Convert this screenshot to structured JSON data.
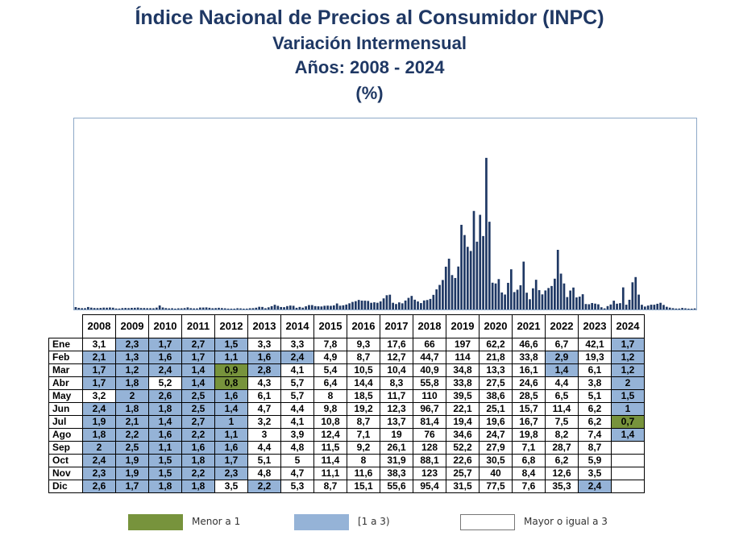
{
  "title": {
    "line1": "Índice Nacional de Precios al Consumidor (INPC)",
    "line2": "Variación Intermensual",
    "line3": "Años: 2008 - 2024",
    "line4": "(%)"
  },
  "colors": {
    "low": "#77933c",
    "mid": "#95b3d7",
    "high": "#ffffff",
    "bar": "#1f3864",
    "title": "#1f3864"
  },
  "chart_data": {
    "type": "bar",
    "title": "Índice Nacional de Precios al Consumidor (INPC)",
    "subtitle": "Variación Intermensual",
    "years": [
      "2008",
      "2009",
      "2010",
      "2011",
      "2012",
      "2013",
      "2014",
      "2015",
      "2016",
      "2017",
      "2018",
      "2019",
      "2020",
      "2021",
      "2022",
      "2023",
      "2024"
    ],
    "months": [
      "Ene",
      "Feb",
      "Mar",
      "Abr",
      "May",
      "Jun",
      "Jul",
      "Ago",
      "Sep",
      "Oct",
      "Nov",
      "Dic"
    ],
    "values": [
      [
        "3,1",
        "2,3",
        "1,7",
        "2,7",
        "1,5",
        "3,3",
        "3,3",
        "7,8",
        "9,3",
        "17,6",
        "66",
        "197",
        "62,2",
        "46,6",
        "6,7",
        "42,1",
        "1,7"
      ],
      [
        "2,1",
        "1,3",
        "1,6",
        "1,7",
        "1,1",
        "1,6",
        "2,4",
        "4,9",
        "8,7",
        "12,7",
        "44,7",
        "114",
        "21,8",
        "33,8",
        "2,9",
        "19,3",
        "1,2"
      ],
      [
        "1,7",
        "1,2",
        "2,4",
        "1,4",
        "0,9",
        "2,8",
        "4,1",
        "5,4",
        "10,5",
        "10,4",
        "40,9",
        "34,8",
        "13,3",
        "16,1",
        "1,4",
        "6,1",
        "1,2"
      ],
      [
        "1,7",
        "1,8",
        "5,2",
        "1,4",
        "0,8",
        "4,3",
        "5,7",
        "6,4",
        "14,4",
        "8,3",
        "55,8",
        "33,8",
        "27,5",
        "24,6",
        "4,4",
        "3,8",
        "2"
      ],
      [
        "3,2",
        "2",
        "2,6",
        "2,5",
        "1,6",
        "6,1",
        "5,7",
        "8",
        "18,5",
        "11,7",
        "110",
        "39,5",
        "38,6",
        "28,5",
        "6,5",
        "5,1",
        "1,5"
      ],
      [
        "2,4",
        "1,8",
        "1,8",
        "2,5",
        "1,4",
        "4,7",
        "4,4",
        "9,8",
        "19,2",
        "12,3",
        "96,7",
        "22,1",
        "25,1",
        "15,7",
        "11,4",
        "6,2",
        "1"
      ],
      [
        "1,9",
        "2,1",
        "1,4",
        "2,7",
        "1",
        "3,2",
        "4,1",
        "10,8",
        "8,7",
        "13,7",
        "81,4",
        "19,4",
        "19,6",
        "16,7",
        "7,5",
        "6,2",
        "0,7"
      ],
      [
        "1,8",
        "2,2",
        "1,6",
        "2,2",
        "1,1",
        "3",
        "3,9",
        "12,4",
        "7,1",
        "19",
        "76",
        "34,6",
        "24,7",
        "19,8",
        "8,2",
        "7,4",
        "1,4"
      ],
      [
        "2",
        "2,5",
        "1,1",
        "1,6",
        "1,6",
        "4,4",
        "4,8",
        "11,5",
        "9,2",
        "26,1",
        "128",
        "52,2",
        "27,9",
        "7,1",
        "28,7",
        "8,7",
        ""
      ],
      [
        "2,4",
        "1,9",
        "1,5",
        "1,8",
        "1,7",
        "5,1",
        "5",
        "11,4",
        "8",
        "31,9",
        "88,1",
        "22,6",
        "30,5",
        "6,8",
        "6,2",
        "5,9",
        ""
      ],
      [
        "2,3",
        "1,9",
        "1,5",
        "2,2",
        "2,3",
        "4,8",
        "4,7",
        "11,1",
        "11,6",
        "38,3",
        "123",
        "25,7",
        "40",
        "8,4",
        "12,6",
        "3,5",
        ""
      ],
      [
        "2,6",
        "1,7",
        "1,8",
        "1,8",
        "3,5",
        "2,2",
        "5,3",
        "8,7",
        "15,1",
        "55,6",
        "95,4",
        "31,5",
        "77,5",
        "7,6",
        "35,3",
        "2,4",
        ""
      ]
    ],
    "ylim": [
      0,
      200
    ],
    "grid": false
  },
  "legend": {
    "low": "Menor a 1",
    "mid": "[1 a 3)",
    "high": "Mayor o igual a 3"
  }
}
